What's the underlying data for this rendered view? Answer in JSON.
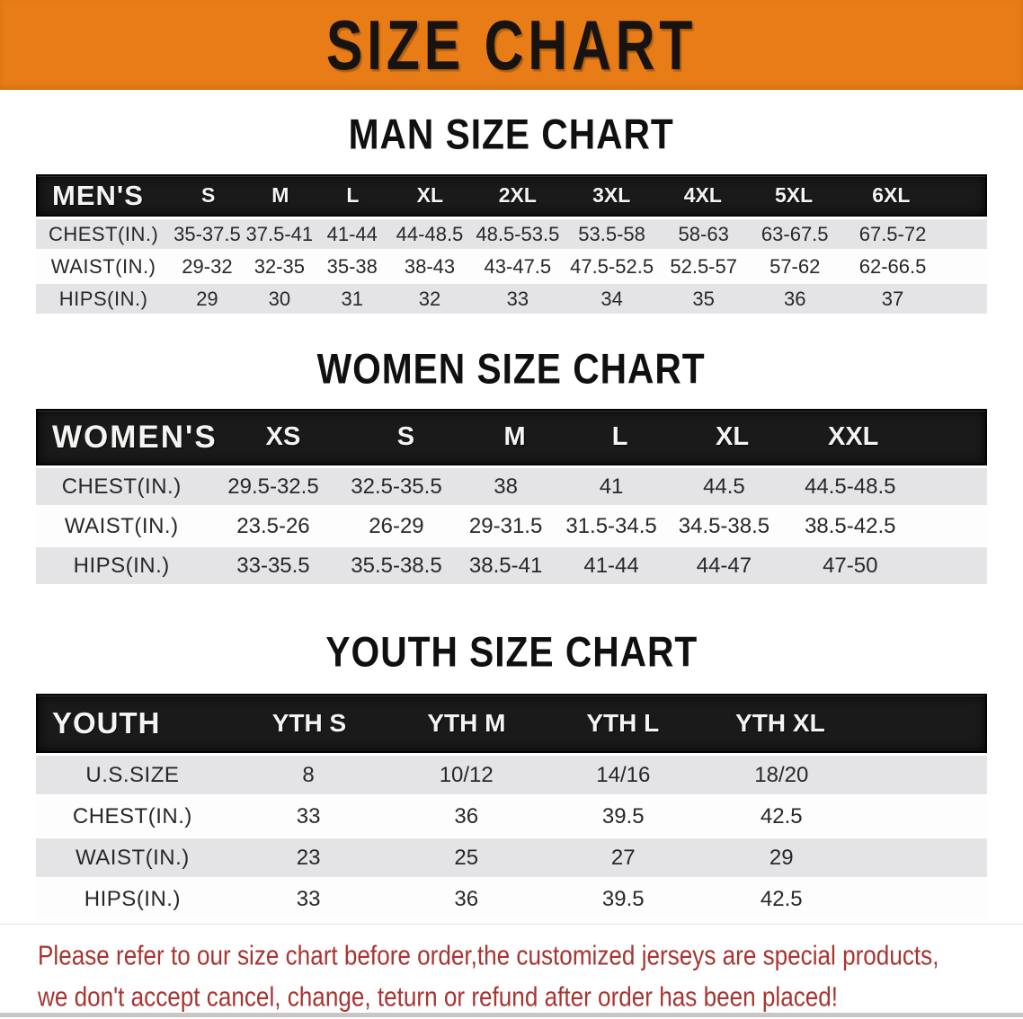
{
  "banner": {
    "title": "SIZE CHART"
  },
  "colors": {
    "banner-bg": "#e87d17",
    "header-bg": "#1a1a1a",
    "stripe": "#e4e4e6",
    "note-color": "#a83430"
  },
  "sections": [
    {
      "heading": "MAN SIZE CHART",
      "header_label": "MEN'S",
      "columns": [
        "S",
        "M",
        "L",
        "XL",
        "2XL",
        "3XL",
        "4XL",
        "5XL",
        "6XL"
      ],
      "rows": [
        {
          "label": "CHEST(IN.)",
          "values": [
            "35-37.5",
            "37.5-41",
            "41-44",
            "44-48.5",
            "48.5-53.5",
            "53.5-58",
            "58-63",
            "63-67.5",
            "67.5-72"
          ]
        },
        {
          "label": "WAIST(IN.)",
          "values": [
            "29-32",
            "32-35",
            "35-38",
            "38-43",
            "43-47.5",
            "47.5-52.5",
            "52.5-57",
            "57-62",
            "62-66.5"
          ]
        },
        {
          "label": "HIPS(IN.)",
          "values": [
            "29",
            "30",
            "31",
            "32",
            "33",
            "34",
            "35",
            "36",
            "37"
          ]
        }
      ]
    },
    {
      "heading": "WOMEN SIZE CHART",
      "header_label": "WOMEN'S",
      "columns": [
        "XS",
        "S",
        "M",
        "L",
        "XL",
        "XXL"
      ],
      "rows": [
        {
          "label": "CHEST(IN.)",
          "values": [
            "29.5-32.5",
            "32.5-35.5",
            "38",
            "41",
            "44.5",
            "44.5-48.5"
          ]
        },
        {
          "label": "WAIST(IN.)",
          "values": [
            "23.5-26",
            "26-29",
            "29-31.5",
            "31.5-34.5",
            "34.5-38.5",
            "38.5-42.5"
          ]
        },
        {
          "label": "HIPS(IN.)",
          "values": [
            "33-35.5",
            "35.5-38.5",
            "38.5-41",
            "41-44",
            "44-47",
            "47-50"
          ]
        }
      ]
    },
    {
      "heading": "YOUTH SIZE CHART",
      "header_label": "YOUTH",
      "columns": [
        "YTH S",
        "YTH M",
        "YTH L",
        "YTH XL"
      ],
      "rows": [
        {
          "label": "U.S.SIZE",
          "values": [
            "8",
            "10/12",
            "14/16",
            "18/20"
          ]
        },
        {
          "label": "CHEST(IN.)",
          "values": [
            "33",
            "36",
            "39.5",
            "42.5"
          ]
        },
        {
          "label": "WAIST(IN.)",
          "values": [
            "23",
            "25",
            "27",
            "29"
          ]
        },
        {
          "label": "HIPS(IN.)",
          "values": [
            "33",
            "36",
            "39.5",
            "42.5"
          ]
        }
      ]
    }
  ],
  "note": {
    "line1": "Please refer to our size chart before order,the customized jerseys are special products,",
    "line2": "we don't accept cancel, change, teturn or refund after order has been placed!"
  },
  "chart_data": [
    {
      "type": "table",
      "title": "MAN SIZE CHART",
      "columns": [
        "MEN'S",
        "S",
        "M",
        "L",
        "XL",
        "2XL",
        "3XL",
        "4XL",
        "5XL",
        "6XL"
      ],
      "rows": [
        [
          "CHEST(IN.)",
          "35-37.5",
          "37.5-41",
          "41-44",
          "44-48.5",
          "48.5-53.5",
          "53.5-58",
          "58-63",
          "63-67.5",
          "67.5-72"
        ],
        [
          "WAIST(IN.)",
          "29-32",
          "32-35",
          "35-38",
          "38-43",
          "43-47.5",
          "47.5-52.5",
          "52.5-57",
          "57-62",
          "62-66.5"
        ],
        [
          "HIPS(IN.)",
          "29",
          "30",
          "31",
          "32",
          "33",
          "34",
          "35",
          "36",
          "37"
        ]
      ]
    },
    {
      "type": "table",
      "title": "WOMEN SIZE CHART",
      "columns": [
        "WOMEN'S",
        "XS",
        "S",
        "M",
        "L",
        "XL",
        "XXL"
      ],
      "rows": [
        [
          "CHEST(IN.)",
          "29.5-32.5",
          "32.5-35.5",
          "38",
          "41",
          "44.5",
          "44.5-48.5"
        ],
        [
          "WAIST(IN.)",
          "23.5-26",
          "26-29",
          "29-31.5",
          "31.5-34.5",
          "34.5-38.5",
          "38.5-42.5"
        ],
        [
          "HIPS(IN.)",
          "33-35.5",
          "35.5-38.5",
          "38.5-41",
          "41-44",
          "44-47",
          "47-50"
        ]
      ]
    },
    {
      "type": "table",
      "title": "YOUTH SIZE CHART",
      "columns": [
        "YOUTH",
        "YTH S",
        "YTH M",
        "YTH L",
        "YTH XL"
      ],
      "rows": [
        [
          "U.S.SIZE",
          "8",
          "10/12",
          "14/16",
          "18/20"
        ],
        [
          "CHEST(IN.)",
          "33",
          "36",
          "39.5",
          "42.5"
        ],
        [
          "WAIST(IN.)",
          "23",
          "25",
          "27",
          "29"
        ],
        [
          "HIPS(IN.)",
          "33",
          "36",
          "39.5",
          "42.5"
        ]
      ]
    }
  ]
}
